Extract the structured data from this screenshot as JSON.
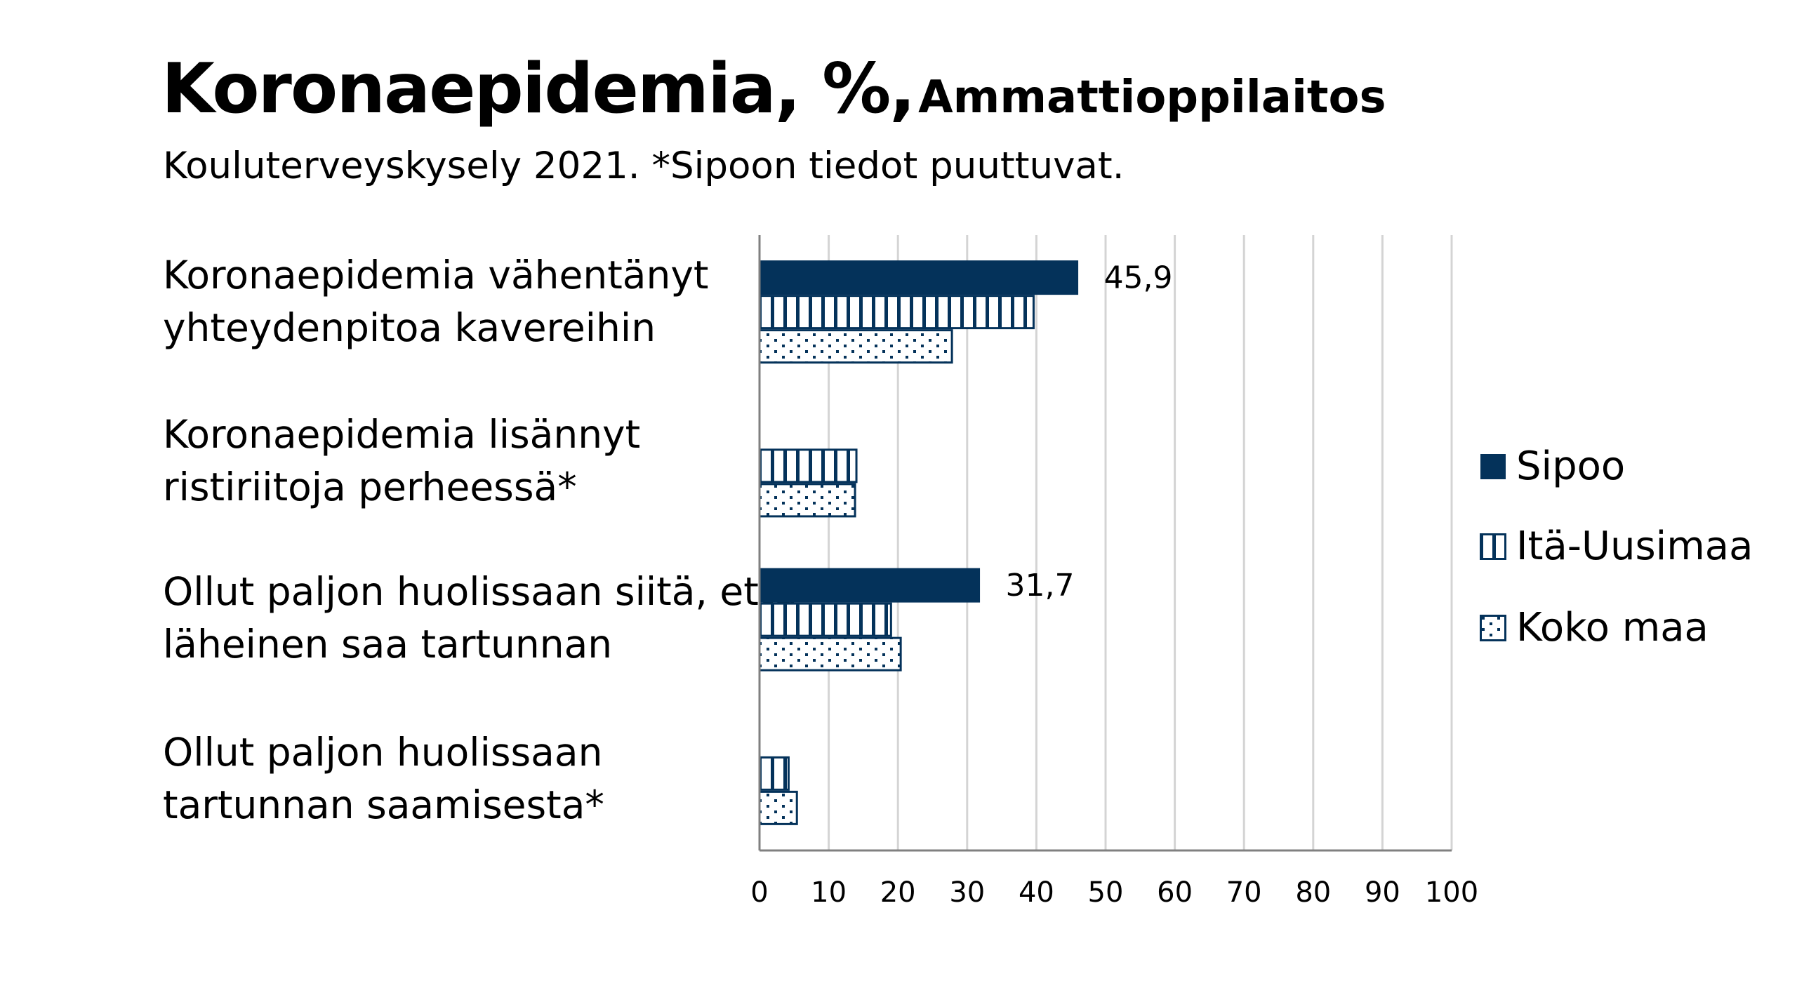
{
  "header": {
    "title": "Koronaepidemia, %,",
    "title_suffix": "Ammattioppilaitos",
    "subtitle": "Kouluterveyskysely 2021. *Sipoon tiedot puuttuvat."
  },
  "chart_data": {
    "type": "bar",
    "orientation": "horizontal",
    "categories": [
      [
        "Koronaepidemia vähentänyt",
        "yhteydenpitoa kavereihin"
      ],
      [
        "Koronaepidemia lisännyt",
        "ristiriitoja perheessä*"
      ],
      [
        "Ollut paljon huolissaan siitä, että",
        "läheinen saa tartunnan"
      ],
      [
        "Ollut paljon huolissaan",
        "tartunnan saamisesta*"
      ]
    ],
    "series": [
      {
        "name": "Sipoo",
        "pattern": "solid",
        "values": [
          45.9,
          null,
          31.7,
          null
        ],
        "labels": [
          "45,9",
          null,
          "31,7",
          null
        ]
      },
      {
        "name": "Itä-Uusimaa",
        "pattern": "vertical-stripes",
        "values": [
          39.6,
          14.0,
          19.0,
          4.2
        ]
      },
      {
        "name": "Koko maa",
        "pattern": "dots",
        "values": [
          27.8,
          13.8,
          20.4,
          5.4
        ]
      }
    ],
    "xlim": [
      0,
      100
    ],
    "xticks": [
      "0",
      "10",
      "20",
      "30",
      "40",
      "50",
      "60",
      "70",
      "80",
      "90",
      "100"
    ],
    "grid": true,
    "legend_position": "right",
    "color": "#04325a"
  }
}
